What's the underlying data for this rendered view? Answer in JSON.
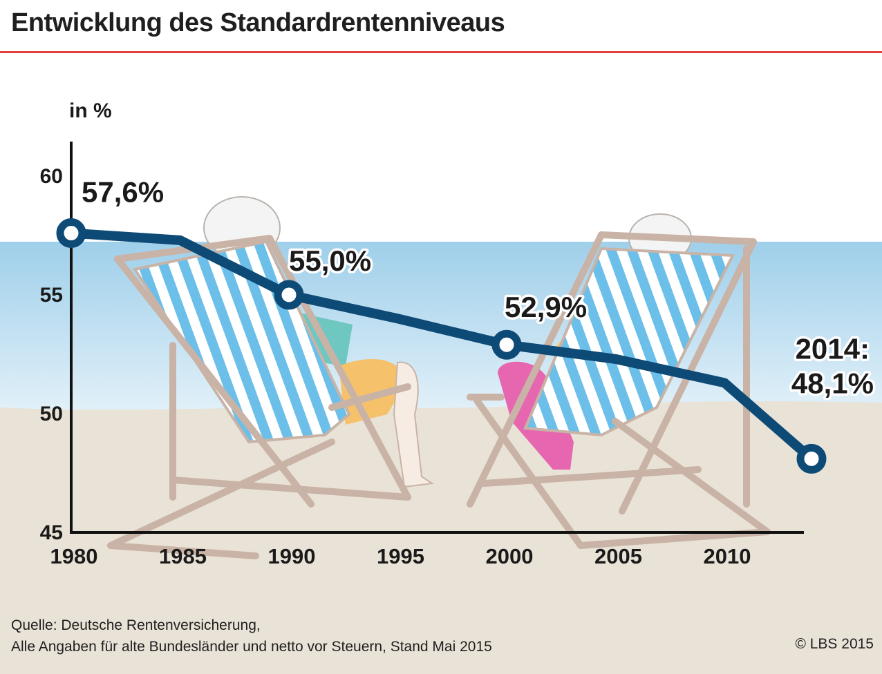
{
  "header": {
    "title": "Entwicklung des Standardrentenniveaus"
  },
  "chart_data": {
    "type": "line",
    "title": "Entwicklung des Standardrentenniveaus",
    "ylabel": "in %",
    "xlabel": "",
    "xlim": [
      1980,
      2014
    ],
    "ylim": [
      45,
      61
    ],
    "x_ticks": [
      1980,
      1985,
      1990,
      1995,
      2000,
      2005,
      2010
    ],
    "y_ticks": [
      45,
      50,
      55,
      60
    ],
    "grid": false,
    "series": [
      {
        "color": "#0d4a76",
        "x": [
          1980,
          1985,
          1990,
          1995,
          2000,
          2005,
          2010,
          2014
        ],
        "y": [
          57.6,
          57.3,
          55.0,
          54.0,
          52.9,
          52.3,
          51.3,
          48.1
        ]
      }
    ],
    "markers": [
      {
        "x": 1980,
        "y": 57.6,
        "label": "57,6%"
      },
      {
        "x": 1990,
        "y": 55.0,
        "label": "55,0%"
      },
      {
        "x": 2000,
        "y": 52.9,
        "label": "52,9%"
      },
      {
        "x": 2014,
        "y": 48.1,
        "label_year": "2014:",
        "label": "48,1%"
      }
    ]
  },
  "footer": {
    "source_line1": "Quelle: Deutsche Rentenversicherung,",
    "source_line2": "Alle Angaben für alte Bundesländer und netto vor Steuern, Stand Mai 2015",
    "copyright": "© LBS 2015"
  },
  "colors": {
    "line": "#0d4a76",
    "title_rule": "#e2403c",
    "sea": "#aed6ee",
    "sand": "#e9e2d6",
    "stripe": "#6cbfe8",
    "chair_frame": "#c9b3a6"
  }
}
